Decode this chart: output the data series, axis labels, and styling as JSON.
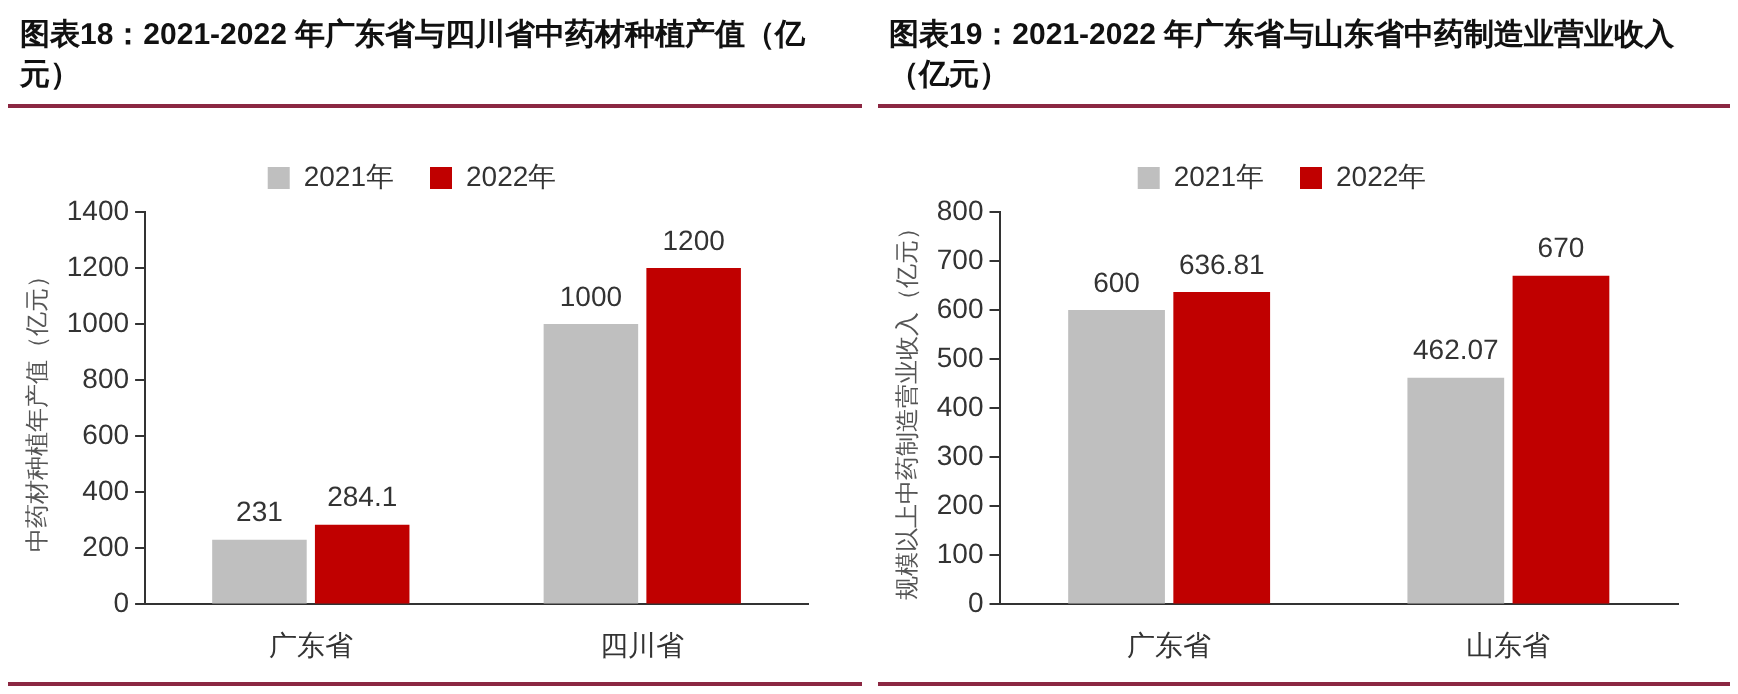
{
  "chart_data": [
    {
      "type": "bar",
      "title": "图表18：2021-2022 年广东省与四川省中药材种植产值（亿元）",
      "ylabel": "中药材种植年产值（亿元）",
      "categories": [
        "广东省",
        "四川省"
      ],
      "series": [
        {
          "name": "2021年",
          "color": "#bfbfbf",
          "values": [
            231,
            1000
          ]
        },
        {
          "name": "2022年",
          "color": "#c00000",
          "values": [
            284.1,
            1200
          ]
        }
      ],
      "ylim": [
        0,
        1400
      ],
      "yticks": [
        0,
        200,
        400,
        600,
        800,
        1000,
        1200,
        1400
      ],
      "grid": false,
      "legend": "top",
      "data_labels": true
    },
    {
      "type": "bar",
      "title": "图表19：2021-2022 年广东省与山东省中药制造业营业收入（亿元）",
      "ylabel": "规模以上中药制造营业收入（亿元）",
      "categories": [
        "广东省",
        "山东省"
      ],
      "series": [
        {
          "name": "2021年",
          "color": "#bfbfbf",
          "values": [
            600,
            462.07
          ]
        },
        {
          "name": "2022年",
          "color": "#c00000",
          "values": [
            636.81,
            670
          ]
        }
      ],
      "ylim": [
        0,
        800
      ],
      "yticks": [
        0,
        100,
        200,
        300,
        400,
        500,
        600,
        700,
        800
      ],
      "grid": false,
      "legend": "top",
      "data_labels": true
    }
  ]
}
